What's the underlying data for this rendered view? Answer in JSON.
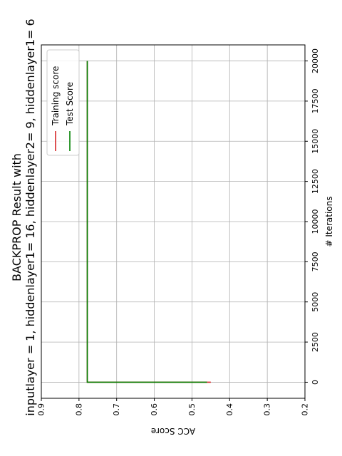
{
  "chart_data": {
    "type": "line",
    "orientation": "rotated-90-ccw",
    "title_lines": [
      "BACKPROP Result with",
      "inputlayer = 1, hiddenlayer1= 16, hiddenlayer2= 9, hiddenlayer1= 6"
    ],
    "xlabel": "# Iterations",
    "ylabel": "ACC Score",
    "xlim": [
      -1000,
      21000
    ],
    "ylim": [
      0.2,
      0.9
    ],
    "xticks": [
      "0",
      "2500",
      "5000",
      "7500",
      "10000",
      "12500",
      "15000",
      "17500",
      "20000"
    ],
    "yticks": [
      "0.2",
      "0.3",
      "0.4",
      "0.5",
      "0.6",
      "0.7",
      "0.8",
      "0.9"
    ],
    "grid": true,
    "legend_position": "upper-left",
    "series": [
      {
        "name": "Training score",
        "color": "#d62728",
        "x": [
          0,
          1,
          20000
        ],
        "y": [
          0.45,
          0.778,
          0.778
        ]
      },
      {
        "name": "Test Score",
        "color": "#008000",
        "x": [
          0,
          1,
          20000
        ],
        "y": [
          0.46,
          0.778,
          0.778
        ]
      }
    ]
  }
}
